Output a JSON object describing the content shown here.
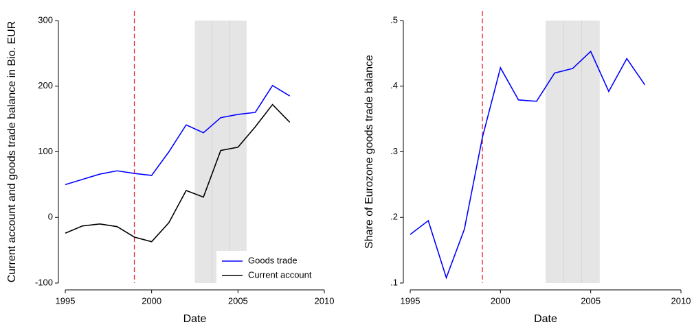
{
  "chart_data": [
    {
      "type": "line",
      "x_label": "Date",
      "y_label": "Current account and goods trade balance in Bio. EUR",
      "x": [
        1995,
        1996,
        1997,
        1998,
        1999,
        2000,
        2001,
        2002,
        2003,
        2004,
        2005,
        2006,
        2007,
        2008
      ],
      "series": [
        {
          "name": "Goods trade",
          "color": "#0000ff",
          "values": [
            50,
            58,
            66,
            71,
            67,
            64,
            100,
            141,
            129,
            152,
            157,
            160,
            201,
            185
          ]
        },
        {
          "name": "Current account",
          "color": "#000000",
          "values": [
            -24,
            -13,
            -10,
            -14,
            -30,
            -37,
            -8,
            41,
            31,
            102,
            107,
            138,
            172,
            145
          ]
        }
      ],
      "xlim": [
        1995,
        2010
      ],
      "xticks": [
        1995,
        2000,
        2005,
        2010
      ],
      "ylim": [
        -100,
        300
      ],
      "yticks": [
        -100,
        0,
        100,
        200,
        300
      ],
      "vline": 1999,
      "vline_color": "#e8232a",
      "shade": [
        2002.5,
        2005.5
      ],
      "shade_lines": [
        2003.5,
        2004.5
      ],
      "shade_color": "#e5e5e5",
      "legend": "bottom right"
    },
    {
      "type": "line",
      "x_label": "Date",
      "y_label": "Share of Eurozone goods trade balance",
      "x": [
        1995,
        1996,
        1997,
        1998,
        1999,
        2000,
        2001,
        2002,
        2003,
        2004,
        2005,
        2006,
        2007,
        2008
      ],
      "values": [
        0.174,
        0.195,
        0.108,
        0.182,
        0.322,
        0.428,
        0.379,
        0.377,
        0.42,
        0.427,
        0.453,
        0.392,
        0.442,
        0.402
      ],
      "color": "#0000ff",
      "xlim": [
        1995,
        2010
      ],
      "xticks": [
        1995,
        2000,
        2005,
        2010
      ],
      "ylim": [
        0.1,
        0.5
      ],
      "yticks": [
        {
          "value": 0.1,
          "label": ".1"
        },
        {
          "value": 0.2,
          "label": ".2"
        },
        {
          "value": 0.3,
          "label": ".3"
        },
        {
          "value": 0.4,
          "label": ".4"
        },
        {
          "value": 0.5,
          "label": ".5"
        }
      ],
      "vline": 1999,
      "vline_color": "#e8232a",
      "shade": [
        2002.5,
        2005.5
      ],
      "shade_lines": [
        2003.5,
        2004.5
      ],
      "shade_color": "#e5e5e5"
    }
  ]
}
